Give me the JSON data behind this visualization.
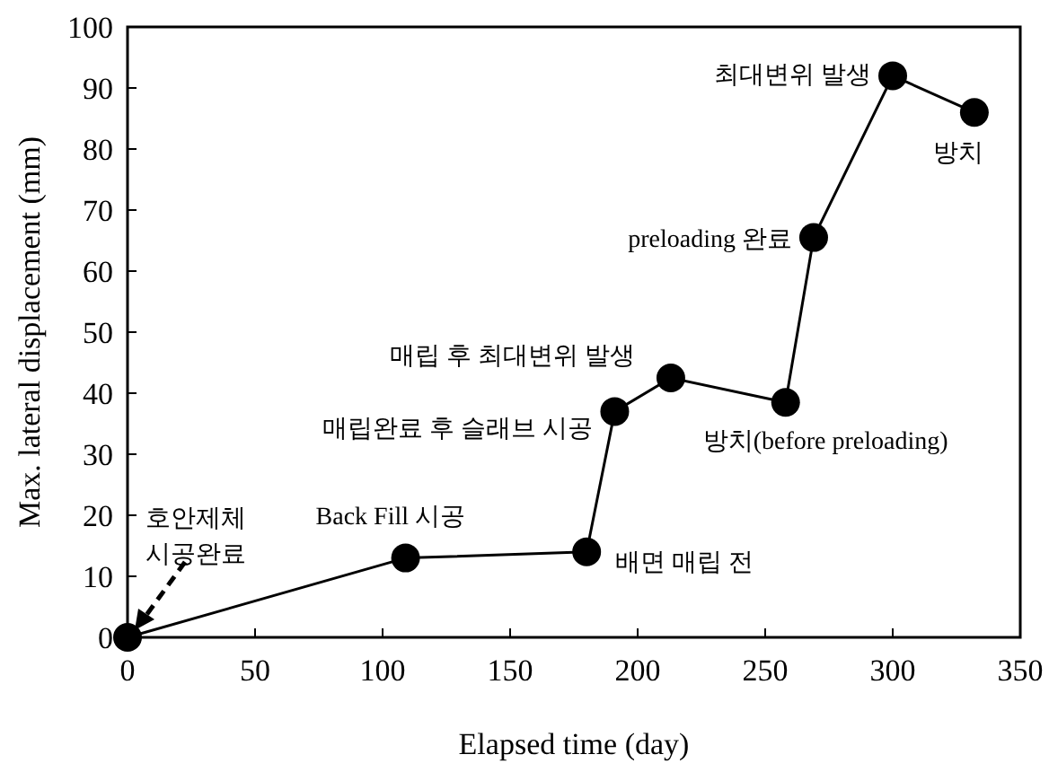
{
  "chart_data": {
    "type": "line",
    "xlabel": "Elapsed time (day)",
    "ylabel": "Max. lateral displacement (mm)",
    "x": [
      0,
      109,
      180,
      191,
      213,
      258,
      269,
      300,
      332
    ],
    "values": [
      0,
      13,
      14,
      37,
      42.5,
      38.5,
      65.5,
      92,
      86
    ],
    "color": "#000000",
    "marker": "circle",
    "line_style": "solid",
    "xlim": [
      0,
      350
    ],
    "xticks": [
      0,
      50,
      100,
      150,
      200,
      250,
      300,
      350
    ],
    "ylim": [
      0,
      100
    ],
    "yticks": [
      0,
      10,
      20,
      30,
      40,
      50,
      60,
      70,
      80,
      90,
      100
    ],
    "annotations": [
      {
        "text": "호안제체\n시공완료",
        "x": 0,
        "y": 0
      },
      {
        "text": "Back Fill 시공",
        "x": 109,
        "y": 13
      },
      {
        "text": "배면 매립 전",
        "x": 180,
        "y": 14
      },
      {
        "text": "매립완료 후 슬래브 시공",
        "x": 191,
        "y": 37
      },
      {
        "text": "매립 후 최대변위 발생",
        "x": 213,
        "y": 42.5
      },
      {
        "text": "방치(before preloading)",
        "x": 258,
        "y": 38.5
      },
      {
        "text": "preloading 완료",
        "x": 269,
        "y": 65.5
      },
      {
        "text": "최대변위 발생",
        "x": 300,
        "y": 92
      },
      {
        "text": "방치",
        "x": 332,
        "y": 86
      }
    ]
  }
}
